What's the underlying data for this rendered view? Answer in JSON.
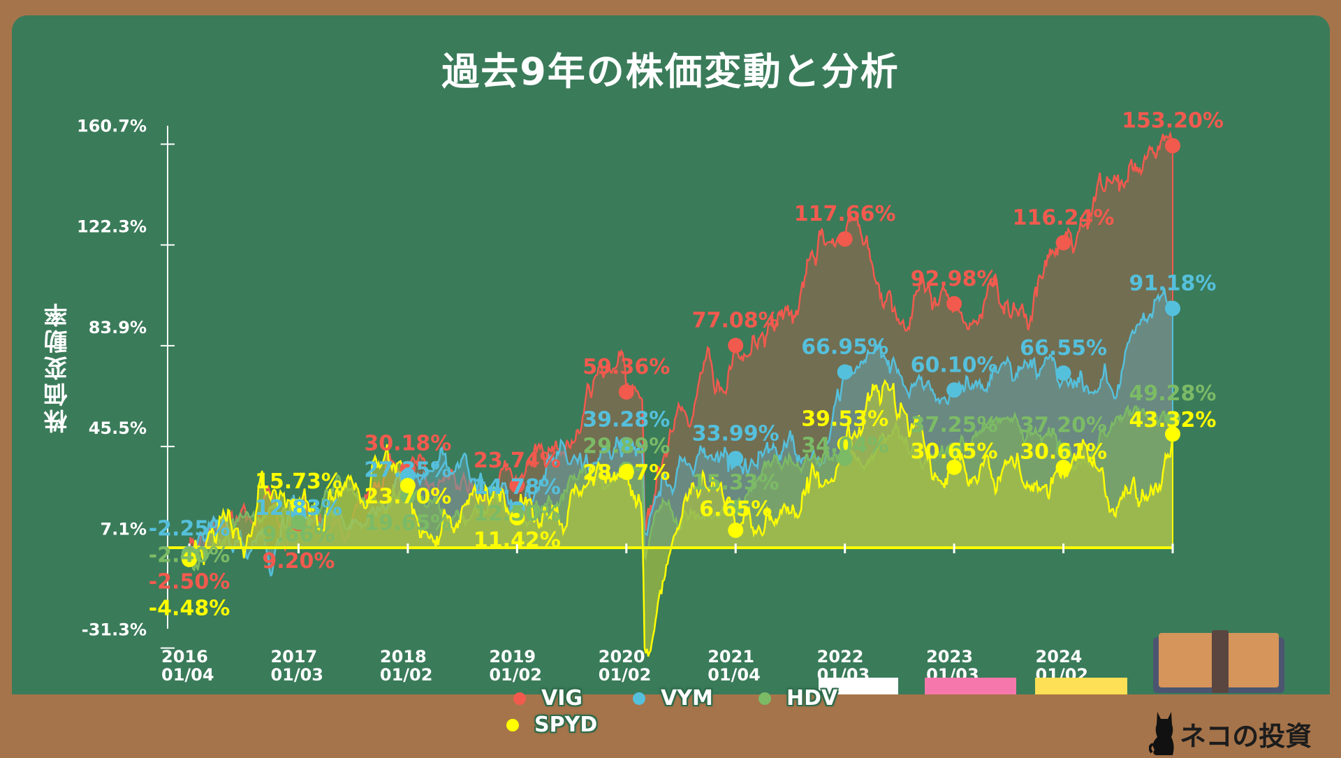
{
  "title": "過去9年の株価変動と分析",
  "brand": "ネコの投資",
  "colors": {
    "board": "#3a7b5a",
    "frame": "#a6744a"
  },
  "chart_data": {
    "type": "area",
    "title": "過去9年の株価変動と分析",
    "ylabel": "株価変動率",
    "xlabel": "",
    "ylim": [
      -31.3,
      160.7
    ],
    "y_ticks": [
      "160.7%",
      "122.3%",
      "83.9%",
      "45.5%",
      "7.1%",
      "-31.3%"
    ],
    "y_tick_values": [
      160.7,
      122.3,
      83.9,
      45.5,
      7.1,
      -31.3
    ],
    "x_ticks": [
      {
        "year": "2016",
        "date": "01/04"
      },
      {
        "year": "2017",
        "date": "01/03"
      },
      {
        "year": "2018",
        "date": "01/02"
      },
      {
        "year": "2019",
        "date": "01/02"
      },
      {
        "year": "2020",
        "date": "01/02"
      },
      {
        "year": "2021",
        "date": "01/04"
      },
      {
        "year": "2022",
        "date": "01/03"
      },
      {
        "year": "2023",
        "date": "01/03"
      },
      {
        "year": "2024",
        "date": "01/02"
      }
    ],
    "grid": false,
    "legend_position": "bottom",
    "series": [
      {
        "name": "VIG",
        "color": "#f25a4e",
        "values": [
          -2.5,
          9.2,
          30.18,
          23.74,
          59.36,
          77.08,
          117.66,
          92.98,
          116.24,
          153.2
        ]
      },
      {
        "name": "VYM",
        "color": "#55c0dc",
        "values": [
          -2.25,
          12.83,
          27.35,
          14.78,
          39.28,
          33.99,
          66.95,
          60.1,
          66.55,
          91.18
        ]
      },
      {
        "name": "HDV",
        "color": "#7cbb66",
        "values": [
          -2.4,
          9.66,
          19.65,
          12.5,
          29.89,
          15.33,
          34.04,
          37.25,
          37.2,
          49.28
        ]
      },
      {
        "name": "SPYD",
        "color": "#ffff00",
        "values": [
          -4.48,
          15.73,
          23.7,
          11.42,
          28.87,
          6.65,
          39.53,
          30.65,
          30.61,
          43.32
        ]
      }
    ]
  }
}
